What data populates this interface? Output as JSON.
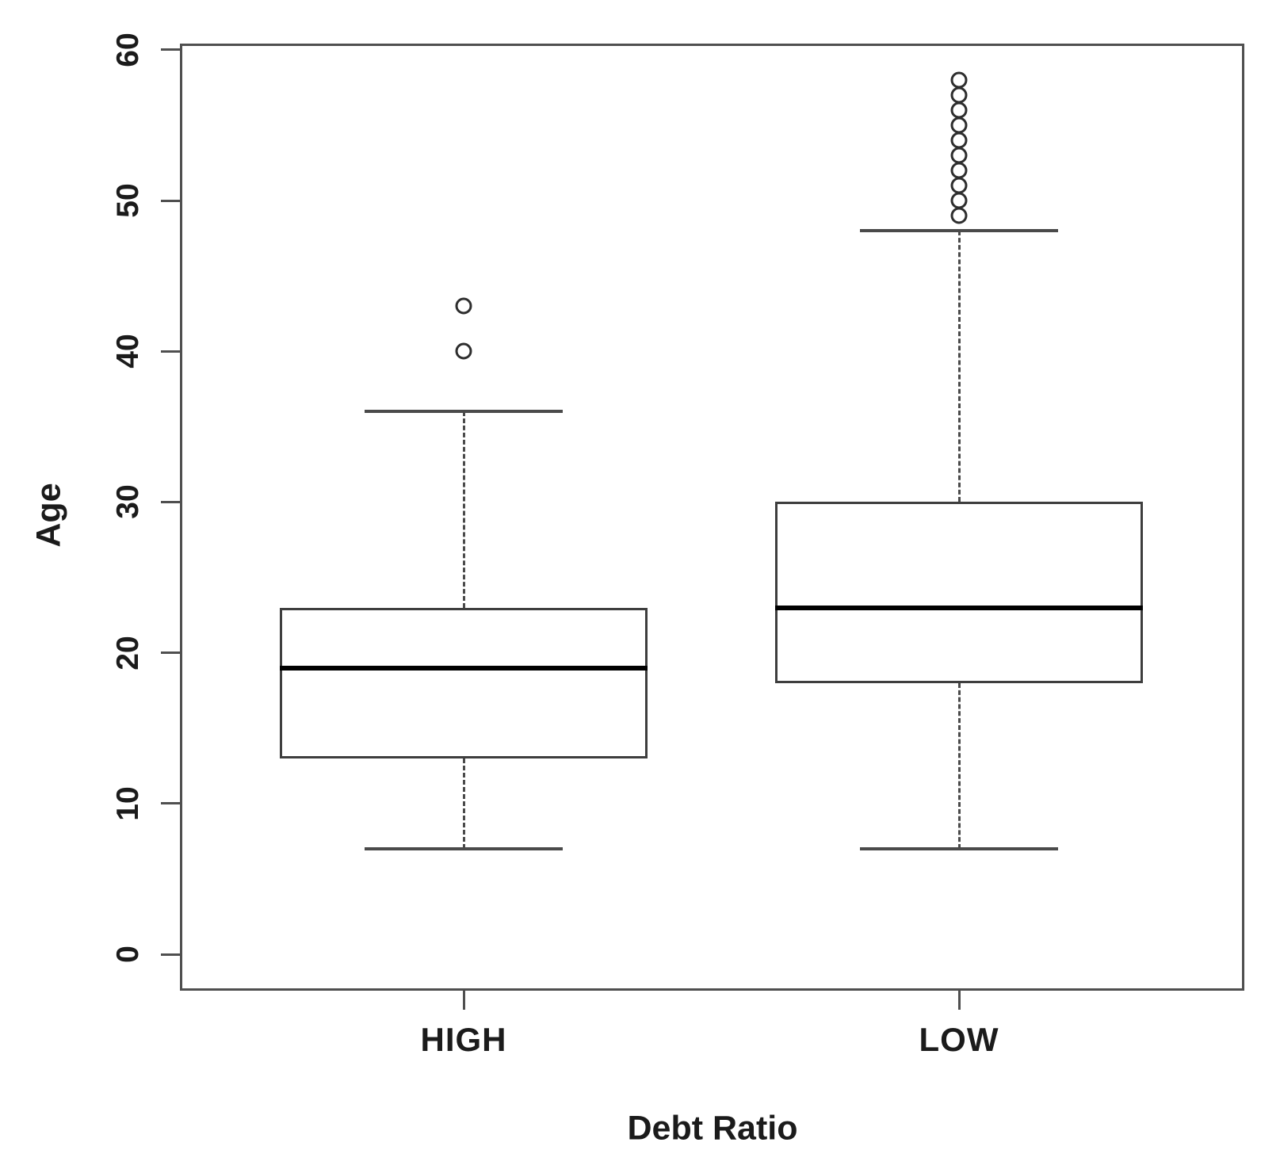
{
  "chart_data": {
    "type": "boxplot",
    "title": "",
    "xlabel": "Debt Ratio",
    "ylabel": "Age",
    "categories": [
      "HIGH",
      "LOW"
    ],
    "y_ticks": [
      0,
      10,
      20,
      30,
      40,
      50,
      60
    ],
    "ylim": [
      0,
      60
    ],
    "grid": false,
    "legend": null,
    "series": [
      {
        "category": "HIGH",
        "lower_whisker": 7,
        "q1": 13,
        "median": 19,
        "q3": 23,
        "upper_whisker": 36,
        "outliers": [
          40,
          43
        ]
      },
      {
        "category": "LOW",
        "lower_whisker": 7,
        "q1": 18,
        "median": 23,
        "q3": 30,
        "upper_whisker": 48,
        "outliers": [
          49,
          50,
          51,
          52,
          53,
          54,
          55,
          56,
          57,
          58
        ]
      }
    ]
  },
  "colors": {
    "line": "#4a4a4a",
    "box_border": "#3e3e3e",
    "median": "#000000",
    "text": "#1b1b1b",
    "background": "#ffffff"
  }
}
